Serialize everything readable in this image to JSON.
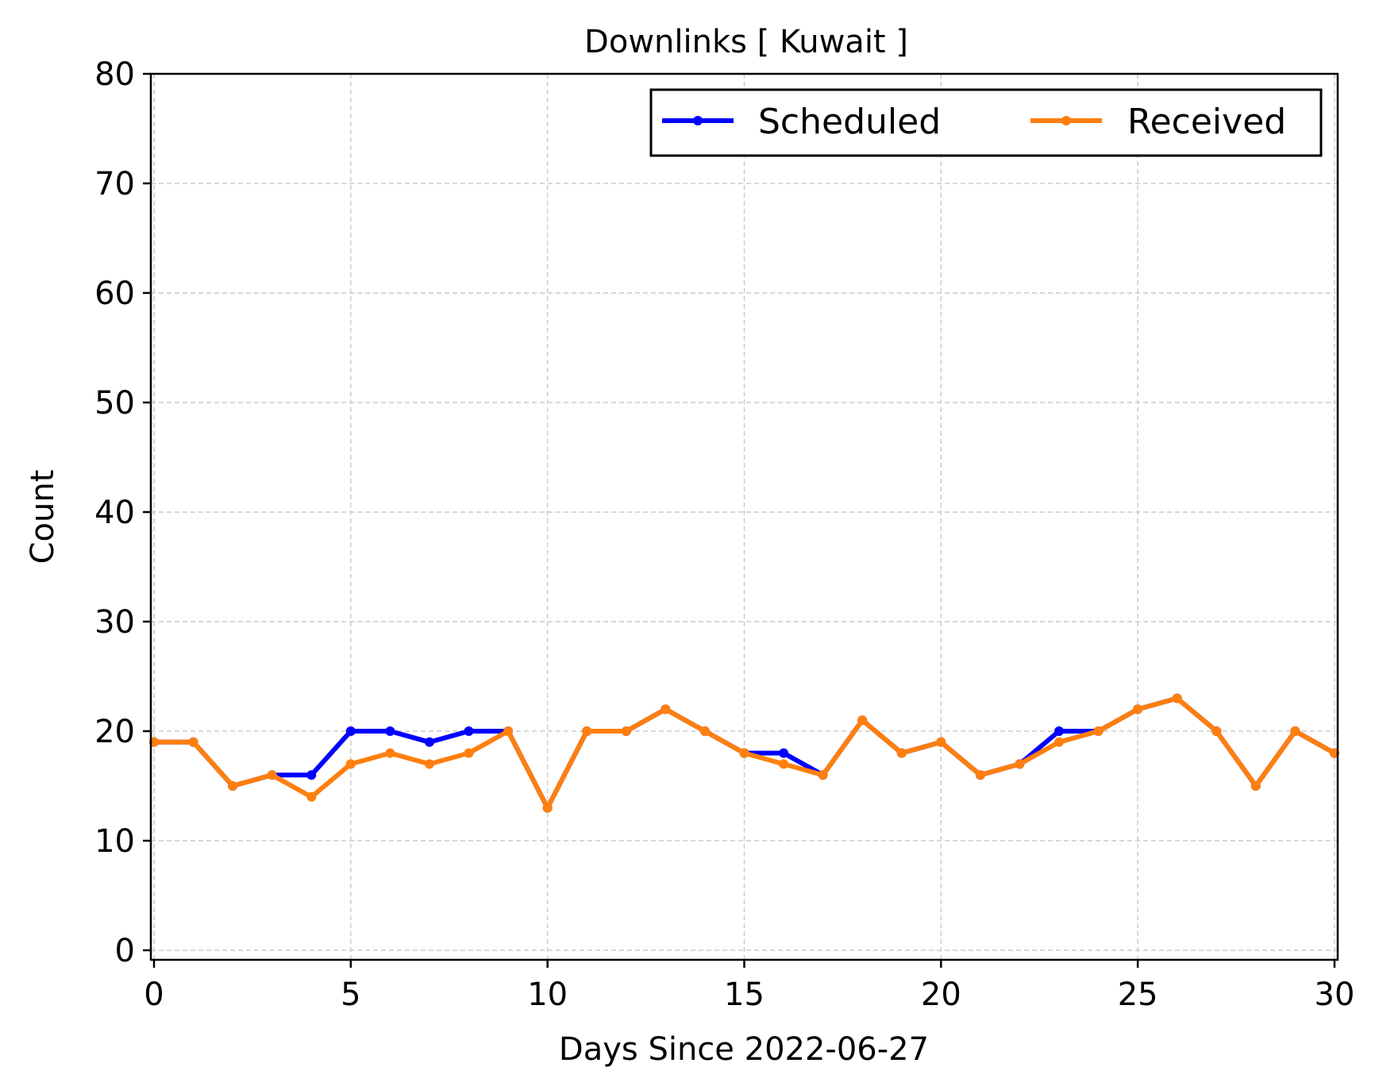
{
  "chart_data": {
    "type": "line",
    "title": "Downlinks [ Kuwait ]",
    "xlabel": "Days Since 2022-06-27",
    "ylabel": "Count",
    "xlim": [
      0,
      30
    ],
    "ylim": [
      -1,
      80
    ],
    "x_ticks": [
      0,
      5,
      10,
      15,
      20,
      25,
      30
    ],
    "y_ticks": [
      0,
      10,
      20,
      30,
      40,
      50,
      60,
      70,
      80
    ],
    "grid": true,
    "legend": {
      "placement": "top-right",
      "columns": 2
    },
    "x": [
      0,
      1,
      2,
      3,
      4,
      5,
      6,
      7,
      8,
      9,
      10,
      11,
      12,
      13,
      14,
      15,
      16,
      17,
      18,
      19,
      20,
      21,
      22,
      23,
      24,
      25,
      26,
      27,
      28,
      29,
      30
    ],
    "series": [
      {
        "name": "Scheduled",
        "color": "#0000ff",
        "values": [
          19,
          19,
          15,
          16,
          16,
          20,
          20,
          19,
          20,
          20,
          13,
          20,
          20,
          22,
          20,
          18,
          18,
          16,
          21,
          18,
          19,
          16,
          17,
          20,
          20,
          22,
          23,
          20,
          15,
          20,
          18
        ]
      },
      {
        "name": "Received",
        "color": "#ff7f0e",
        "values": [
          19,
          19,
          15,
          16,
          14,
          17,
          18,
          17,
          18,
          20,
          13,
          20,
          20,
          22,
          20,
          18,
          17,
          16,
          21,
          18,
          19,
          16,
          17,
          19,
          20,
          22,
          23,
          20,
          15,
          20,
          18
        ]
      }
    ]
  }
}
